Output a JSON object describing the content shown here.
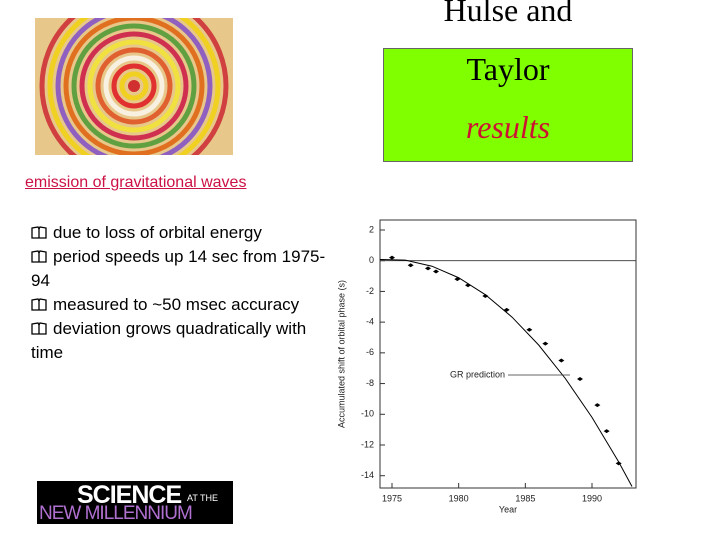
{
  "title": {
    "line1": "Hulse and",
    "line2": "Taylor",
    "line3": "results"
  },
  "heading": "emission of gravitational waves",
  "bullets": [
    "due to loss of orbital energy",
    "period speeds up 14 sec from 1975-94",
    "measured to ~50 msec accuracy",
    "deviation grows quadratically with time"
  ],
  "logo": {
    "word1": "SCIENCE",
    "word2": "AT THE",
    "word3": "NEW MILLENNIUM"
  },
  "chart_data": {
    "type": "scatter",
    "x_label": "Year",
    "y_label": "Accumulated shift of orbital phase (s)",
    "xlim": [
      1974.1,
      1993.3
    ],
    "xticks": [
      1975,
      1980,
      1985,
      1990
    ],
    "ylim": [
      -14.8,
      2.65
    ],
    "yticks": [
      2,
      0,
      -2,
      -4,
      -6,
      -8,
      -10,
      -12,
      -14
    ],
    "zero_line": true,
    "series": [
      {
        "color": "#000000",
        "x": [
          1975.0,
          1976.4,
          1977.7,
          1978.3,
          1979.9,
          1980.7,
          1982.0,
          1983.6,
          1985.3,
          1986.5,
          1987.7,
          1989.1,
          1990.4,
          1991.1,
          1992.0
        ],
        "values": [
          0.2,
          -0.3,
          -0.5,
          -0.7,
          -1.2,
          -1.6,
          -2.3,
          -3.2,
          -4.5,
          -5.4,
          -6.5,
          -7.7,
          -9.4,
          -11.1,
          -13.2
        ]
      },
      {
        "name": "GR prediction",
        "color": "#000000",
        "x": [
          1974.1,
          1976,
          1978,
          1980,
          1982,
          1984,
          1986,
          1988,
          1990,
          1992,
          1993
        ],
        "values": [
          0.08,
          0.04,
          -0.36,
          -1.11,
          -2.21,
          -3.67,
          -5.49,
          -7.67,
          -10.2,
          -13.1,
          -14.7
        ]
      }
    ]
  }
}
